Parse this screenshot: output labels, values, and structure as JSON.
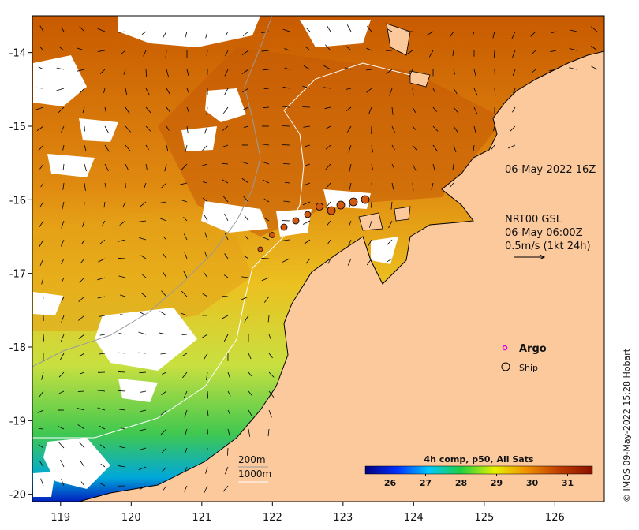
{
  "map": {
    "type": "sea-surface-temperature map",
    "lon_range": [
      118.6,
      126.7
    ],
    "lat_range": [
      -20.1,
      -13.5
    ],
    "x_ticks": [
      "119",
      "120",
      "121",
      "122",
      "123",
      "124",
      "125",
      "126"
    ],
    "y_ticks": [
      "-14",
      "-15",
      "-16",
      "-17",
      "-18",
      "-19",
      "-20"
    ]
  },
  "annotations": {
    "ship_time": "06-May-2022 16Z",
    "current_source": "NRT00 GSL",
    "current_time": "06-May 06:00Z",
    "current_scale": "0.5m/s (1kt 24h)"
  },
  "legend": {
    "argo": "Argo",
    "ship": "Ship",
    "argo_color": "#e000e0"
  },
  "isobaths": {
    "shallow": "200m",
    "deep": "1000m"
  },
  "colorbar": {
    "title": "4h comp, p50, All Sats",
    "ticks": [
      "26",
      "27",
      "28",
      "29",
      "30",
      "31"
    ],
    "range": [
      25.3,
      31.7
    ],
    "colors": [
      "#000080",
      "#0030ff",
      "#00c8ff",
      "#20d040",
      "#e8f000",
      "#f09000",
      "#c04000",
      "#8a1000"
    ]
  },
  "credit": "© IMOS 09-May-2022 15:28 Hobart",
  "colors": {
    "land": "#fcc99d",
    "cloud": "#ffffff",
    "coast": "#000000"
  }
}
